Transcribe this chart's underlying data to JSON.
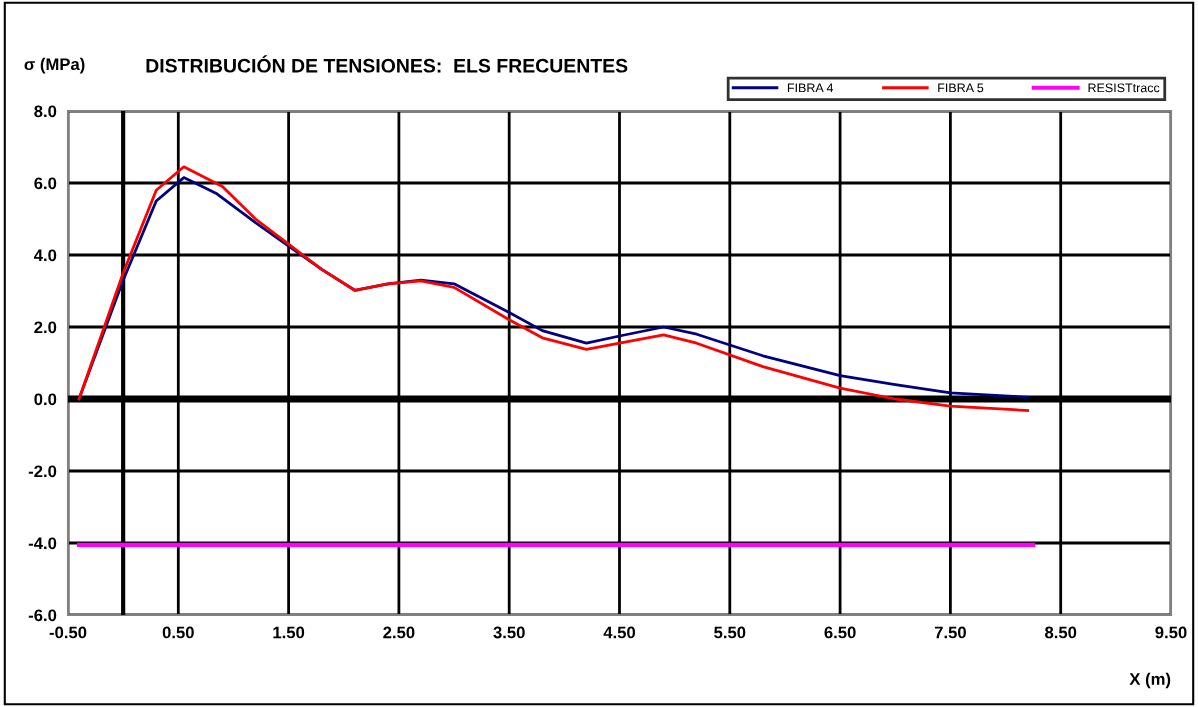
{
  "chart_data": {
    "type": "line",
    "title": "DISTRIBUCIÓN DE TENSIONES:  ELS FRECUENTES",
    "ylabel": "σ (MPa)",
    "xlabel": "X (m)",
    "series": [
      {
        "name": "FIBRA 4",
        "color": "#000080",
        "x": [
          -0.4,
          0.0,
          0.3,
          0.55,
          0.85,
          1.2,
          1.5,
          1.8,
          2.1,
          2.4,
          2.7,
          3.0,
          3.5,
          3.8,
          4.2,
          4.5,
          4.9,
          5.2,
          5.8,
          6.5,
          7.0,
          7.5,
          8.2
        ],
        "values": [
          0,
          3.3,
          5.5,
          6.15,
          5.7,
          4.9,
          4.25,
          3.6,
          3.02,
          3.2,
          3.3,
          3.2,
          2.4,
          1.9,
          1.55,
          1.75,
          2.0,
          1.8,
          1.2,
          0.65,
          0.4,
          0.17,
          0.05
        ]
      },
      {
        "name": "FIBRA 5",
        "color": "#ff0000",
        "x": [
          -0.4,
          0.0,
          0.3,
          0.55,
          0.9,
          1.2,
          1.5,
          1.8,
          2.1,
          2.4,
          2.7,
          3.0,
          3.5,
          3.8,
          4.2,
          4.5,
          4.9,
          5.2,
          5.8,
          6.5,
          7.0,
          7.5,
          8.2
        ],
        "values": [
          0,
          3.5,
          5.8,
          6.45,
          5.9,
          5.0,
          4.3,
          3.6,
          3.02,
          3.2,
          3.28,
          3.1,
          2.2,
          1.7,
          1.38,
          1.55,
          1.78,
          1.55,
          0.9,
          0.3,
          0.0,
          -0.2,
          -0.32
        ]
      },
      {
        "name": "RESISTtracc",
        "color": "#ff00ff",
        "x": [
          -0.4,
          8.25
        ],
        "values": [
          -4.05,
          -4.05
        ]
      }
    ],
    "xlim": [
      -0.5,
      9.5
    ],
    "xticks": [
      {
        "value": -0.5,
        "label": "-0.50"
      },
      {
        "value": 0.5,
        "label": "0.50"
      },
      {
        "value": 1.5,
        "label": "1.50"
      },
      {
        "value": 2.5,
        "label": "2.50"
      },
      {
        "value": 3.5,
        "label": "3.50"
      },
      {
        "value": 4.5,
        "label": "4.50"
      },
      {
        "value": 5.5,
        "label": "5.50"
      },
      {
        "value": 6.5,
        "label": "6.50"
      },
      {
        "value": 7.5,
        "label": "7.50"
      },
      {
        "value": 8.5,
        "label": "8.50"
      },
      {
        "value": 9.5,
        "label": "9.50"
      }
    ],
    "ylim": [
      -6,
      8
    ],
    "yticks": [
      {
        "value": -6,
        "label": "-6.0"
      },
      {
        "value": -4,
        "label": "-4.0"
      },
      {
        "value": -2,
        "label": "-2.0"
      },
      {
        "value": 0,
        "label": "0.0"
      },
      {
        "value": 2,
        "label": "2.0"
      },
      {
        "value": 4,
        "label": "4.0"
      },
      {
        "value": 6,
        "label": "6.0"
      },
      {
        "value": 8,
        "label": "8.0"
      }
    ],
    "ref_lines": [
      {
        "axis": "y",
        "value": 0,
        "color": "#000000"
      },
      {
        "axis": "x",
        "value": 0,
        "color": "#000000"
      }
    ],
    "grid": true,
    "legend": "top right",
    "marker": "none",
    "line_style": "solid"
  }
}
